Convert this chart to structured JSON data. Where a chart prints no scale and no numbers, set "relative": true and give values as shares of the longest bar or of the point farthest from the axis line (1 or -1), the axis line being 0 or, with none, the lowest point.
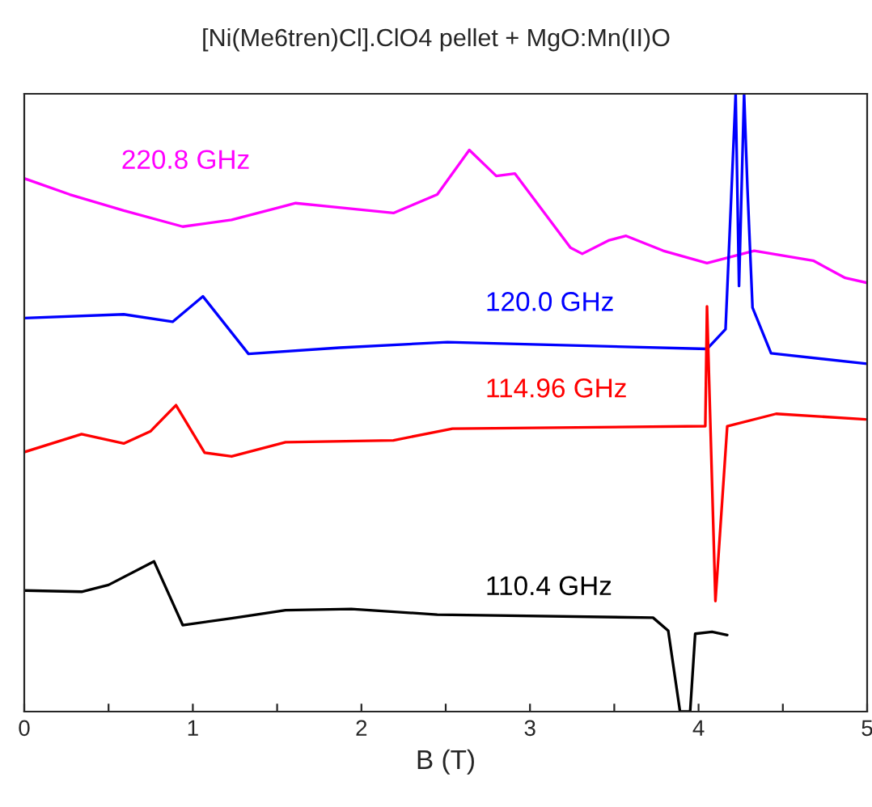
{
  "chart_data": {
    "type": "line",
    "title": "[Ni(Me6tren)Cl].ClO4 pellet + MgO:Mn(II)O",
    "xlabel": "B (T)",
    "relative": true,
    "xlim": [
      0,
      5
    ],
    "xticks": [
      0,
      {
        "value": 0.5,
        "label": null
      },
      1,
      {
        "value": 1.5,
        "label": null
      },
      2,
      {
        "value": 2.5,
        "label": null
      },
      3,
      {
        "value": 3.5,
        "label": null
      },
      4,
      {
        "value": 4.5,
        "label": null
      },
      5
    ],
    "grid": false,
    "legend": false,
    "tick_labels": "x",
    "line_style": "solid",
    "marker": "none",
    "series": [
      {
        "name": "220.8 GHz",
        "color": "#ff00ff",
        "x": [
          0,
          0.27,
          0.59,
          0.94,
          1.23,
          1.61,
          2.19,
          2.45,
          2.64,
          2.8,
          2.91,
          3.24,
          3.31,
          3.47,
          3.57,
          3.79,
          4.05,
          4.33,
          4.68,
          4.87,
          5.0
        ],
        "values": [
          0.863,
          0.837,
          0.811,
          0.785,
          0.796,
          0.823,
          0.807,
          0.837,
          0.909,
          0.867,
          0.871,
          0.751,
          0.741,
          0.763,
          0.77,
          0.746,
          0.726,
          0.746,
          0.73,
          0.702,
          0.694
        ]
      },
      {
        "name": "120.0 GHz",
        "color": "#0000ff",
        "x": [
          0,
          0.59,
          0.88,
          1.06,
          1.33,
          1.87,
          2.51,
          4.05,
          4.16,
          4.22,
          4.24,
          4.27,
          4.29,
          4.32,
          4.43,
          5.0
        ],
        "values": [
          0.637,
          0.643,
          0.631,
          0.672,
          0.579,
          0.589,
          0.598,
          0.587,
          0.619,
          1.0,
          0.689,
          1.0,
          0.847,
          0.654,
          0.58,
          0.563
        ]
      },
      {
        "name": "114.96 GHz",
        "color": "#ff0000",
        "x": [
          0,
          0.34,
          0.59,
          0.75,
          0.9,
          1.07,
          1.23,
          1.55,
          2.19,
          2.54,
          4.04,
          4.05,
          4.1,
          4.17,
          4.46,
          4.99
        ],
        "values": [
          0.42,
          0.449,
          0.434,
          0.454,
          0.496,
          0.419,
          0.413,
          0.436,
          0.439,
          0.458,
          0.462,
          0.656,
          0.179,
          0.462,
          0.482,
          0.473
        ]
      },
      {
        "name": "110.4 GHz",
        "color": "#000000",
        "x": [
          0,
          0.34,
          0.5,
          0.77,
          0.94,
          1.23,
          1.55,
          1.94,
          2.45,
          3.73,
          3.82,
          3.89,
          3.95,
          3.98,
          4.08,
          4.17
        ],
        "values": [
          0.196,
          0.194,
          0.205,
          0.243,
          0.14,
          0.151,
          0.164,
          0.166,
          0.157,
          0.152,
          0.131,
          0.0,
          0.0,
          0.126,
          0.129,
          0.124
        ]
      }
    ]
  }
}
